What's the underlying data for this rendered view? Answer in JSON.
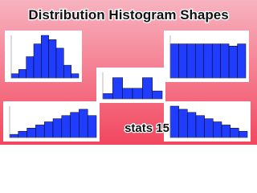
{
  "header": {
    "title": "Distribution Histogram Shapes"
  },
  "footer": {
    "label": "stats 15"
  },
  "chart_data": [
    {
      "type": "bar",
      "values": [
        1,
        2,
        5,
        8,
        10,
        9,
        7,
        3,
        1
      ],
      "color": "#1f3cff",
      "ylim": [
        0,
        10
      ]
    },
    {
      "type": "bar",
      "values": [
        2,
        8,
        4,
        4,
        8,
        3
      ],
      "color": "#1f3cff",
      "ylim": [
        0,
        10
      ]
    },
    {
      "type": "bar",
      "values": [
        8,
        8,
        8,
        8,
        8,
        8,
        8,
        7.5,
        8
      ],
      "color": "#1f3cff",
      "ylim": [
        0,
        10
      ]
    },
    {
      "type": "bar",
      "values": [
        1,
        2,
        3,
        4,
        5,
        6,
        7,
        8,
        9,
        7
      ],
      "color": "#1f3cff",
      "ylim": [
        0,
        10
      ]
    },
    {
      "type": "bar",
      "values": [
        10,
        9,
        8,
        7,
        6,
        5,
        4,
        3,
        2
      ],
      "color": "#1f3cff",
      "ylim": [
        0,
        10
      ]
    }
  ]
}
